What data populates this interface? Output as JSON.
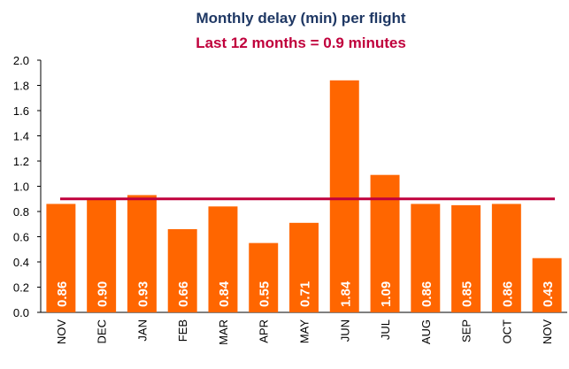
{
  "chart_data": {
    "type": "bar",
    "title": "Monthly delay (min) per flight",
    "subtitle": "Last 12 months = 0.9 minutes",
    "categories": [
      "NOV",
      "DEC",
      "JAN",
      "FEB",
      "MAR",
      "APR",
      "MAY",
      "JUN",
      "JUL",
      "AUG",
      "SEP",
      "OCT",
      "NOV"
    ],
    "values": [
      0.86,
      0.9,
      0.93,
      0.66,
      0.84,
      0.55,
      0.71,
      1.84,
      1.09,
      0.86,
      0.85,
      0.86,
      0.43
    ],
    "value_labels": [
      "0.86",
      "0.90",
      "0.93",
      "0.66",
      "0.84",
      "0.55",
      "0.71",
      "1.84",
      "1.09",
      "0.86",
      "0.85",
      "0.86",
      "0.43"
    ],
    "color": "#ff6600",
    "reference_line": {
      "value": 0.9,
      "color": "#c0003c"
    },
    "ylim": [
      0,
      2
    ],
    "yticks": [
      {
        "value": 0,
        "label": "0.0"
      },
      0.2,
      0.4,
      0.6,
      0.8,
      {
        "value": 1,
        "label": "1.0"
      },
      1.2,
      1.4,
      1.6,
      1.8,
      {
        "value": 2,
        "label": "2.0"
      }
    ],
    "grid": false
  }
}
